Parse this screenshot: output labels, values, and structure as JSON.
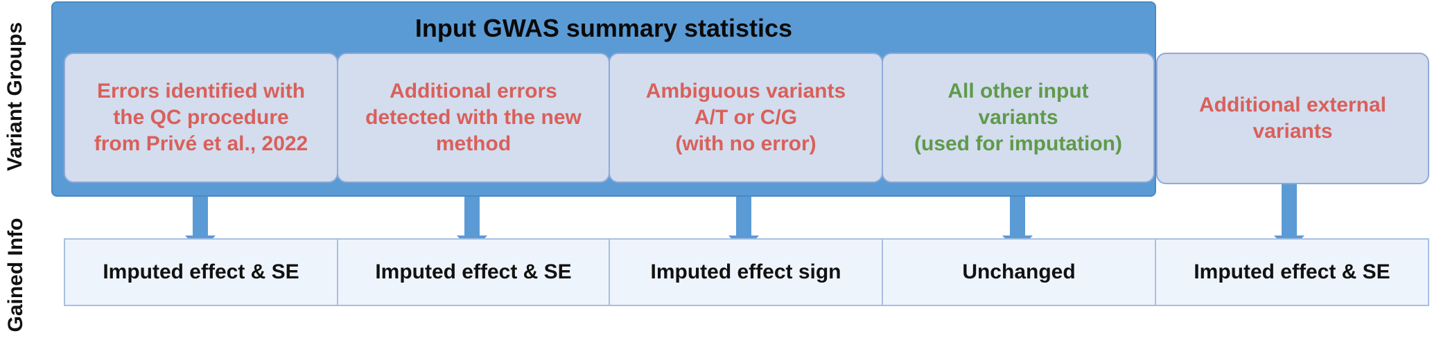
{
  "labels": {
    "variant_groups": "Variant Groups",
    "gained_info": "Gained Info"
  },
  "header": {
    "title": "Input GWAS summary statistics"
  },
  "groups": [
    {
      "text": "Errors identified with\nthe QC procedure\nfrom Privé et al., 2022",
      "color": "#d9605a"
    },
    {
      "text": "Additional errors\ndetected with the new\nmethod",
      "color": "#d9605a"
    },
    {
      "text": "Ambiguous variants\nA/T or C/G\n(with no error)",
      "color": "#d9605a"
    },
    {
      "text": "All other input\nvariants\n(used for imputation)",
      "color": "#5f9a4a"
    },
    {
      "text": "Additional external\nvariants",
      "color": "#d9605a"
    }
  ],
  "info": [
    "Imputed effect & SE",
    "Imputed effect & SE",
    "Imputed effect sign",
    "Unchanged",
    "Imputed effect & SE"
  ],
  "colors": {
    "box_fill": "#5b9bd5",
    "group_fill": "#d3ddee",
    "info_fill": "#eef4fc",
    "error_text": "#d9605a",
    "ok_text": "#5f9a4a"
  }
}
